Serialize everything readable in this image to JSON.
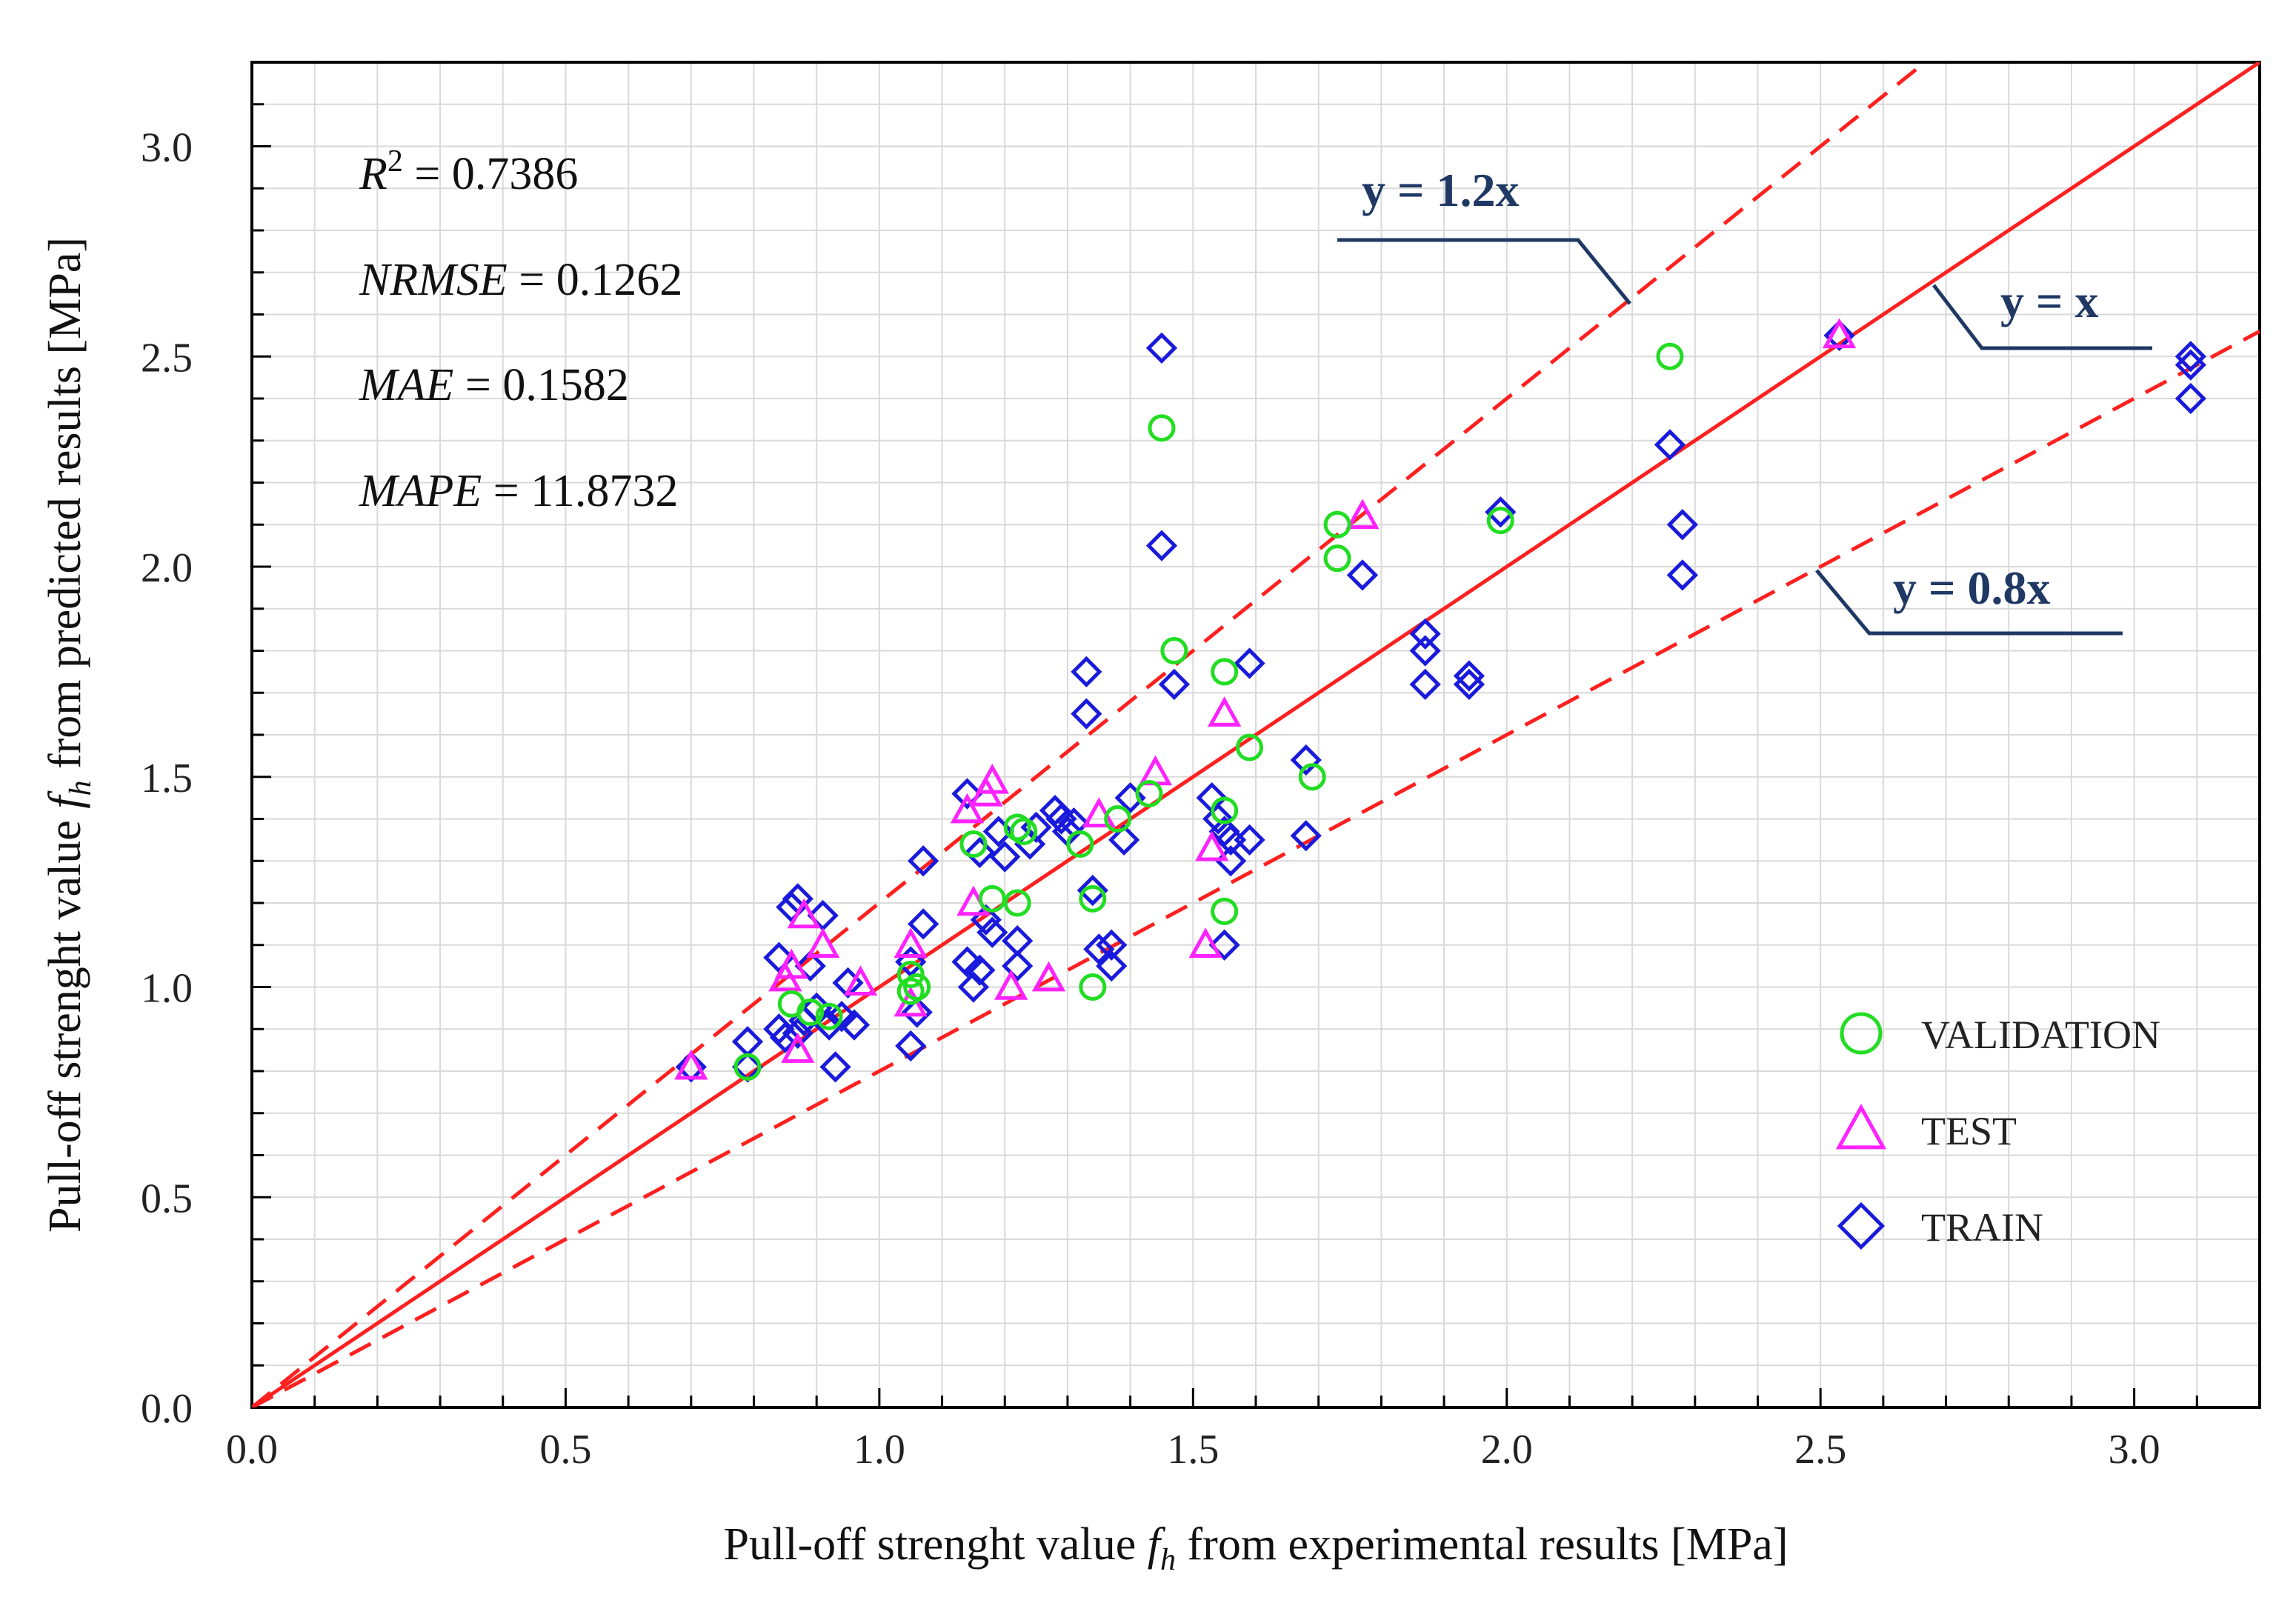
{
  "chart_data": {
    "type": "scatter",
    "xlabel_parts": [
      "Pull-off strenght value ",
      "f",
      "h",
      " from experimental results [MPa]"
    ],
    "ylabel_parts": [
      "Pull-off strenght value ",
      "f",
      "h",
      " from predicted results [MPa]"
    ],
    "xlim": [
      0,
      3.2
    ],
    "ylim": [
      0,
      3.2
    ],
    "grid": true,
    "x_ticks": [
      "0.0",
      "0.5",
      "1.0",
      "1.5",
      "2.0",
      "2.5",
      "3.0"
    ],
    "y_ticks": [
      "0.0",
      "0.5",
      "1.0",
      "1.5",
      "2.0",
      "2.5",
      "3.0"
    ],
    "stats": [
      {
        "name": "R",
        "sup": "2",
        "rest": " = 0.7386"
      },
      {
        "name": "NRMSE",
        "sup": "",
        "rest": " = 0.1262"
      },
      {
        "name": "MAE",
        "sup": "",
        "rest": " = 0.1582"
      },
      {
        "name": "MAPE",
        "sup": "",
        "rest": "  = 11.8732"
      }
    ],
    "reference_lines": [
      {
        "label": "y = 1.2x",
        "slope": 1.2,
        "style": "dashed"
      },
      {
        "label": "y = x",
        "slope": 1.0,
        "style": "solid"
      },
      {
        "label": "y = 0.8x",
        "slope": 0.8,
        "style": "dashed"
      }
    ],
    "legend": [
      {
        "label": "VALIDATION",
        "marker": "circle",
        "color": "#22dd22"
      },
      {
        "label": "TEST",
        "marker": "triangle",
        "color": "#ff22ff"
      },
      {
        "label": "TRAIN",
        "marker": "diamond",
        "color": "#1a1adc"
      }
    ],
    "series": [
      {
        "name": "TRAIN",
        "marker": "diamond",
        "color": "#1a1adc",
        "points": [
          [
            0.7,
            0.81
          ],
          [
            0.79,
            0.87
          ],
          [
            0.79,
            0.81
          ],
          [
            0.84,
            1.07
          ],
          [
            0.84,
            0.9
          ],
          [
            0.85,
            0.88
          ],
          [
            0.86,
            1.19
          ],
          [
            0.87,
            1.21
          ],
          [
            0.87,
            0.89
          ],
          [
            0.88,
            0.92
          ],
          [
            0.89,
            1.05
          ],
          [
            0.9,
            0.95
          ],
          [
            0.91,
            1.17
          ],
          [
            0.92,
            0.91
          ],
          [
            0.93,
            0.81
          ],
          [
            0.94,
            0.93
          ],
          [
            0.95,
            1.01
          ],
          [
            0.96,
            0.91
          ],
          [
            1.05,
            1.06
          ],
          [
            1.05,
            0.86
          ],
          [
            1.06,
            0.94
          ],
          [
            1.07,
            1.15
          ],
          [
            1.07,
            1.3
          ],
          [
            1.14,
            1.46
          ],
          [
            1.14,
            1.06
          ],
          [
            1.15,
            1.0
          ],
          [
            1.16,
            1.32
          ],
          [
            1.16,
            1.04
          ],
          [
            1.17,
            1.16
          ],
          [
            1.18,
            1.13
          ],
          [
            1.19,
            1.37
          ],
          [
            1.2,
            1.31
          ],
          [
            1.22,
            1.11
          ],
          [
            1.22,
            1.05
          ],
          [
            1.24,
            1.34
          ],
          [
            1.25,
            1.38
          ],
          [
            1.28,
            1.42
          ],
          [
            1.29,
            1.4
          ],
          [
            1.3,
            1.37
          ],
          [
            1.31,
            1.39
          ],
          [
            1.33,
            1.75
          ],
          [
            1.33,
            1.65
          ],
          [
            1.34,
            1.23
          ],
          [
            1.35,
            1.09
          ],
          [
            1.37,
            1.1
          ],
          [
            1.37,
            1.05
          ],
          [
            1.39,
            1.35
          ],
          [
            1.4,
            1.45
          ],
          [
            1.45,
            2.52
          ],
          [
            1.45,
            2.05
          ],
          [
            1.47,
            1.72
          ],
          [
            1.53,
            1.45
          ],
          [
            1.54,
            1.4
          ],
          [
            1.55,
            1.1
          ],
          [
            1.55,
            1.37
          ],
          [
            1.56,
            1.35
          ],
          [
            1.56,
            1.3
          ],
          [
            1.59,
            1.77
          ],
          [
            1.59,
            1.35
          ],
          [
            1.68,
            1.54
          ],
          [
            1.68,
            1.36
          ],
          [
            1.77,
            1.98
          ],
          [
            1.87,
            1.84
          ],
          [
            1.87,
            1.8
          ],
          [
            1.87,
            1.72
          ],
          [
            1.94,
            1.74
          ],
          [
            1.94,
            1.72
          ],
          [
            1.99,
            2.13
          ],
          [
            2.26,
            2.29
          ],
          [
            2.28,
            2.1
          ],
          [
            2.28,
            1.98
          ],
          [
            2.53,
            2.55
          ],
          [
            3.09,
            2.5
          ],
          [
            3.09,
            2.48
          ],
          [
            3.09,
            2.4
          ]
        ]
      },
      {
        "name": "TEST",
        "marker": "triangle",
        "color": "#ff22ff",
        "points": [
          [
            0.7,
            0.81
          ],
          [
            0.85,
            1.02
          ],
          [
            0.86,
            1.05
          ],
          [
            0.87,
            0.85
          ],
          [
            0.88,
            1.17
          ],
          [
            0.91,
            1.1
          ],
          [
            0.97,
            1.01
          ],
          [
            1.05,
            0.96
          ],
          [
            1.05,
            1.1
          ],
          [
            1.14,
            1.42
          ],
          [
            1.15,
            1.2
          ],
          [
            1.17,
            1.46
          ],
          [
            1.18,
            1.49
          ],
          [
            1.21,
            1.0
          ],
          [
            1.27,
            1.02
          ],
          [
            1.35,
            1.41
          ],
          [
            1.44,
            1.51
          ],
          [
            1.52,
            1.1
          ],
          [
            1.53,
            1.33
          ],
          [
            1.55,
            1.65
          ],
          [
            1.77,
            2.12
          ],
          [
            2.53,
            2.55
          ]
        ]
      },
      {
        "name": "VALIDATION",
        "marker": "circle",
        "color": "#22dd22",
        "points": [
          [
            0.79,
            0.81
          ],
          [
            0.86,
            0.96
          ],
          [
            0.89,
            0.94
          ],
          [
            0.92,
            0.93
          ],
          [
            1.05,
            1.03
          ],
          [
            1.05,
            0.99
          ],
          [
            1.06,
            1.0
          ],
          [
            1.15,
            1.34
          ],
          [
            1.18,
            1.21
          ],
          [
            1.22,
            1.38
          ],
          [
            1.23,
            1.37
          ],
          [
            1.22,
            1.2
          ],
          [
            1.32,
            1.34
          ],
          [
            1.34,
            1.21
          ],
          [
            1.34,
            1.0
          ],
          [
            1.38,
            1.4
          ],
          [
            1.43,
            1.46
          ],
          [
            1.45,
            2.33
          ],
          [
            1.47,
            1.8
          ],
          [
            1.55,
            1.75
          ],
          [
            1.55,
            1.42
          ],
          [
            1.55,
            1.18
          ],
          [
            1.59,
            1.57
          ],
          [
            1.69,
            1.5
          ],
          [
            1.73,
            2.1
          ],
          [
            1.73,
            2.02
          ],
          [
            1.99,
            2.11
          ],
          [
            2.26,
            2.5
          ]
        ]
      }
    ]
  }
}
